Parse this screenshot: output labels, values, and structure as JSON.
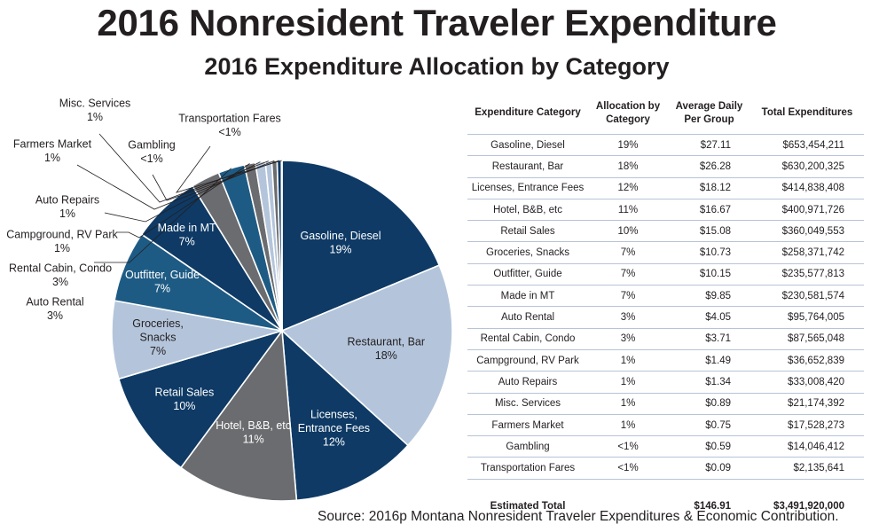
{
  "title": "2016 Nonresident Traveler Expenditure",
  "subtitle": "2016 Expenditure Allocation by Category",
  "source": "Source: 2016p Montana Nonresident Traveler Expenditures & Economic Contribution.",
  "colors": {
    "navy": "#0e3a65",
    "light_blue": "#b4c5db",
    "gray": "#6b6c6f",
    "steel_blue": "#1e5b84",
    "white": "#ffffff",
    "table_rule": "#b7c4d6"
  },
  "chart_data": {
    "type": "pie",
    "title": "2016 Expenditure Allocation by Category",
    "slices": [
      {
        "label": "Gasoline, Diesel",
        "pct_label": "19%",
        "value": 653454211,
        "color": "#0e3a65"
      },
      {
        "label": "Restaurant, Bar",
        "pct_label": "18%",
        "value": 630200325,
        "color": "#b4c5db"
      },
      {
        "label": "Licenses, Entrance Fees",
        "pct_label": "12%",
        "value": 414838408,
        "color": "#0e3a65"
      },
      {
        "label": "Hotel, B&B, etc",
        "pct_label": "11%",
        "value": 400971726,
        "color": "#6b6c6f"
      },
      {
        "label": "Retail Sales",
        "pct_label": "10%",
        "value": 360049553,
        "color": "#0e3a65"
      },
      {
        "label": "Groceries, Snacks",
        "pct_label": "7%",
        "value": 258371742,
        "color": "#b4c5db"
      },
      {
        "label": "Outfitter, Guide",
        "pct_label": "7%",
        "value": 235577813,
        "color": "#1e5b84"
      },
      {
        "label": "Made in MT",
        "pct_label": "7%",
        "value": 230581574,
        "color": "#0e3a65"
      },
      {
        "label": "Auto Rental",
        "pct_label": "3%",
        "value": 95764005,
        "color": "#6b6c6f"
      },
      {
        "label": "Rental Cabin, Condo",
        "pct_label": "3%",
        "value": 87565048,
        "color": "#1e5b84"
      },
      {
        "label": "Campground, RV Park",
        "pct_label": "1%",
        "value": 36652839,
        "color": "#6b6c6f"
      },
      {
        "label": "Auto Repairs",
        "pct_label": "1%",
        "value": 33008420,
        "color": "#b4c5db"
      },
      {
        "label": "Misc. Services",
        "pct_label": "1%",
        "value": 21174392,
        "color": "#b4c5db"
      },
      {
        "label": "Farmers Market",
        "pct_label": "1%",
        "value": 17528273,
        "color": "#6b6c6f"
      },
      {
        "label": "Gambling",
        "pct_label": "<1%",
        "value": 14046412,
        "color": "#0e3a65"
      },
      {
        "label": "Transportation Fares",
        "pct_label": "<1%",
        "value": 2135641,
        "color": "#6b6c6f"
      }
    ],
    "start_angle_deg": 90,
    "direction": "clockwise"
  },
  "table": {
    "headers": [
      "Expenditure Category",
      "Allocation by Category",
      "Average Daily Per Group",
      "Total Expenditures"
    ],
    "rows": [
      [
        "Gasoline, Diesel",
        "19%",
        "$27.11",
        "$653,454,211"
      ],
      [
        "Restaurant, Bar",
        "18%",
        "$26.28",
        "$630,200,325"
      ],
      [
        "Licenses, Entrance Fees",
        "12%",
        "$18.12",
        "$414,838,408"
      ],
      [
        "Hotel, B&B, etc",
        "11%",
        "$16.67",
        "$400,971,726"
      ],
      [
        "Retail Sales",
        "10%",
        "$15.08",
        "$360,049,553"
      ],
      [
        "Groceries, Snacks",
        "7%",
        "$10.73",
        "$258,371,742"
      ],
      [
        "Outfitter, Guide",
        "7%",
        "$10.15",
        "$235,577,813"
      ],
      [
        "Made in MT",
        "7%",
        "$9.85",
        "$230,581,574"
      ],
      [
        "Auto Rental",
        "3%",
        "$4.05",
        "$95,764,005"
      ],
      [
        "Rental Cabin, Condo",
        "3%",
        "$3.71",
        "$87,565,048"
      ],
      [
        "Campground, RV Park",
        "1%",
        "$1.49",
        "$36,652,839"
      ],
      [
        "Auto Repairs",
        "1%",
        "$1.34",
        "$33,008,420"
      ],
      [
        "Misc. Services",
        "1%",
        "$0.89",
        "$21,174,392"
      ],
      [
        "Farmers Market",
        "1%",
        "$0.75",
        "$17,528,273"
      ],
      [
        "Gambling",
        "<1%",
        "$0.59",
        "$14,046,412"
      ],
      [
        "Transportation Fares",
        "<1%",
        "$0.09",
        "$2,135,641"
      ]
    ],
    "total": {
      "label": "Estimated Total",
      "allocation": "",
      "avg_daily": "$146.91",
      "total": "$3,491,920,000"
    }
  }
}
